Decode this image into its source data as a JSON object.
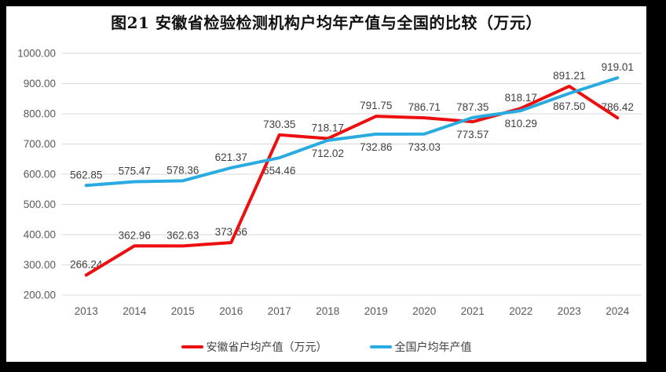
{
  "chart_data": {
    "type": "line",
    "title": "图21 安徽省检验检测机构户均年产值与全国的比较（万元）",
    "categories": [
      "2013",
      "2014",
      "2015",
      "2016",
      "2017",
      "2018",
      "2019",
      "2020",
      "2021",
      "2022",
      "2023",
      "2024"
    ],
    "series": [
      {
        "name": "安徽省户均产值（万元）",
        "color": "#ED0F0F",
        "values": [
          266.24,
          362.96,
          362.63,
          373.66,
          730.35,
          718.17,
          791.75,
          786.71,
          773.57,
          818.17,
          891.21,
          786.42
        ],
        "label_sides": [
          "above",
          "above",
          "above",
          "above",
          "above",
          "above",
          "above",
          "above",
          "below",
          "above",
          "above",
          "above"
        ]
      },
      {
        "name": "全国户均年产值",
        "color": "#29ABE2",
        "values": [
          562.85,
          575.47,
          578.36,
          621.37,
          654.46,
          712.02,
          732.86,
          733.03,
          787.35,
          810.29,
          867.5,
          919.01
        ],
        "label_sides": [
          "above",
          "above",
          "above",
          "above",
          "below",
          "below",
          "below",
          "below",
          "above",
          "below",
          "below",
          "above"
        ]
      }
    ],
    "xlabel": "",
    "ylabel": "",
    "ylim": [
      200,
      1000
    ],
    "ytick_step": 100,
    "ytick_format": "0.00",
    "grid": "horizontal",
    "legend_position": "bottom"
  },
  "colors": {
    "frame": "#000000",
    "background": "#FFFFFF",
    "gridline": "#D9D9D9",
    "axis_text": "#595959",
    "data_label_text": "#3F3F3F",
    "title_text": "#111111"
  }
}
